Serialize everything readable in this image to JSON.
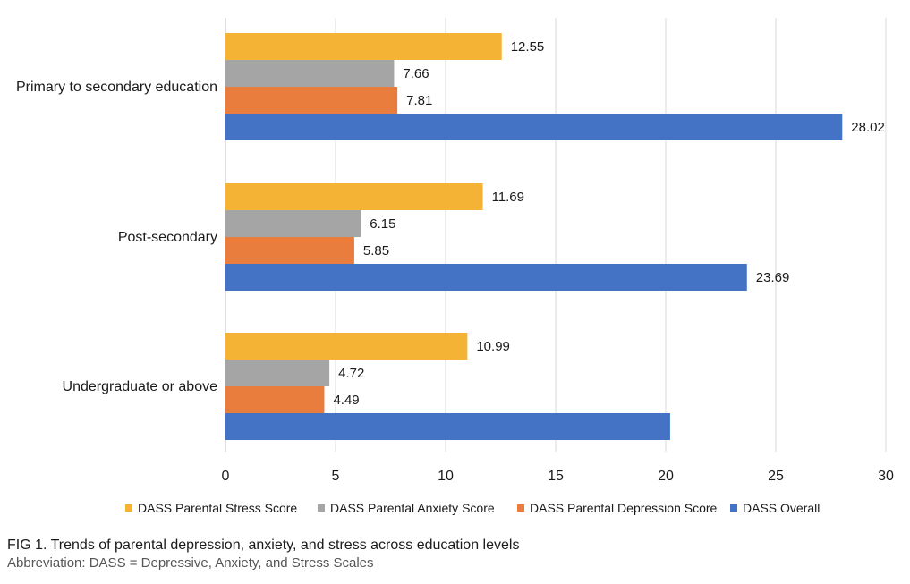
{
  "chart_data": {
    "type": "bar",
    "orientation": "horizontal",
    "categories": [
      "Primary to secondary education",
      "Post-secondary",
      "Undergraduate or above"
    ],
    "series": [
      {
        "name": "DASS Parental Stress Score",
        "color": "#f5b335",
        "values": [
          12.55,
          11.69,
          10.99
        ],
        "labels": [
          "12.55",
          "11.69",
          "10.99"
        ]
      },
      {
        "name": "DASS Parental Anxiety Score",
        "color": "#a5a5a5",
        "values": [
          7.66,
          6.15,
          4.72
        ],
        "labels": [
          "7.66",
          "6.15",
          "4.72"
        ]
      },
      {
        "name": "DASS Parental Depression Score",
        "color": "#e87d3e",
        "values": [
          7.81,
          5.85,
          4.49
        ],
        "labels": [
          "7.81",
          "5.85",
          "4.49"
        ]
      },
      {
        "name": "DASS Overall",
        "color": "#4472c4",
        "values": [
          28.02,
          23.69,
          20.2
        ],
        "labels": [
          "28.02",
          "23.69",
          ""
        ]
      }
    ],
    "xlim": [
      0,
      30
    ],
    "xticks": [
      "0",
      "5",
      "10",
      "15",
      "20",
      "25",
      "30"
    ],
    "grid": true,
    "legend": "bottom"
  },
  "caption": {
    "title": "FIG 1. Trends of parental depression, anxiety, and stress across education levels",
    "abbreviation": "Abbreviation: DASS = Depressive, Anxiety, and Stress Scales"
  }
}
